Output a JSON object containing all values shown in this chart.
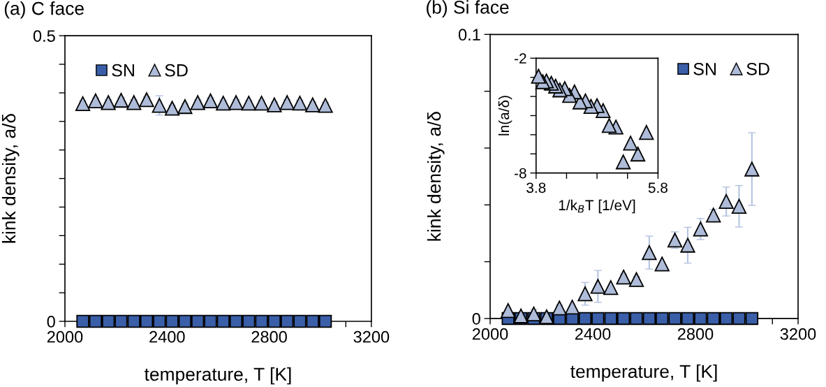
{
  "chart_data": [
    {
      "type": "scatter",
      "title": "(a) C face",
      "xlabel": "temperature, T [K]",
      "ylabel": "kink density, a/δ",
      "x": [
        2070,
        2120,
        2170,
        2220,
        2270,
        2320,
        2370,
        2420,
        2470,
        2520,
        2570,
        2620,
        2670,
        2720,
        2770,
        2820,
        2870,
        2920,
        2970,
        3020
      ],
      "series": [
        {
          "name": "SN",
          "marker": "square",
          "color": "#3a5ea8",
          "values": [
            0,
            0,
            0,
            0,
            0,
            0,
            0,
            0,
            0,
            0,
            0,
            0,
            0,
            0,
            0,
            0,
            0,
            0,
            0,
            0
          ]
        },
        {
          "name": "SD",
          "marker": "triangle",
          "color": "#aebcd9",
          "values": [
            0.381,
            0.386,
            0.383,
            0.387,
            0.383,
            0.388,
            0.378,
            0.373,
            0.376,
            0.383,
            0.386,
            0.382,
            0.383,
            0.382,
            0.382,
            0.379,
            0.383,
            0.382,
            0.379,
            0.378
          ],
          "errors": [
            0.005,
            0.005,
            0.005,
            0.005,
            0.005,
            0.005,
            0.017,
            0.005,
            0.005,
            0.005,
            0.005,
            0.005,
            0.005,
            0.005,
            0.005,
            0.005,
            0.005,
            0.005,
            0.005,
            0.005
          ]
        }
      ],
      "xlim": [
        2000,
        3200
      ],
      "xticks": [
        2000,
        {
          "value": 2100,
          "label": null
        },
        {
          "value": 2200,
          "label": null
        },
        {
          "value": 2300,
          "label": null
        },
        2400,
        {
          "value": 2500,
          "label": null
        },
        {
          "value": 2600,
          "label": null
        },
        {
          "value": 2700,
          "label": null
        },
        2800,
        {
          "value": 2900,
          "label": null
        },
        {
          "value": 3000,
          "label": null
        },
        {
          "value": 3100,
          "label": null
        },
        3200
      ],
      "ylim": [
        0,
        0.5
      ],
      "yticks": [
        0,
        {
          "value": 0.05,
          "label": null
        },
        {
          "value": 0.1,
          "label": null
        },
        {
          "value": 0.15,
          "label": null
        },
        {
          "value": 0.2,
          "label": null
        },
        {
          "value": 0.25,
          "label": null
        },
        {
          "value": 0.3,
          "label": null
        },
        {
          "value": 0.35,
          "label": null
        },
        {
          "value": 0.4,
          "label": null
        },
        {
          "value": 0.45,
          "label": null
        },
        0.5
      ],
      "legend": "top left",
      "grid": false
    },
    {
      "type": "scatter",
      "title": "(b) Si face",
      "xlabel": "temperature, T [K]",
      "ylabel": "kink density, a/δ",
      "x": [
        2070,
        2120,
        2170,
        2220,
        2270,
        2320,
        2370,
        2420,
        2470,
        2520,
        2570,
        2620,
        2670,
        2720,
        2770,
        2820,
        2870,
        2920,
        2970,
        3020
      ],
      "series": [
        {
          "name": "SN",
          "marker": "square",
          "color": "#3a5ea8",
          "values": [
            0,
            0,
            0,
            0,
            0,
            0,
            0,
            0,
            0,
            0,
            0,
            0,
            0,
            0,
            0,
            0,
            0,
            0,
            0,
            0
          ]
        },
        {
          "name": "SD",
          "marker": "triangle",
          "color": "#aebcd9",
          "values": [
            0.0028,
            0.0009,
            0.0016,
            0.0006,
            0.0037,
            0.004,
            0.0087,
            0.0113,
            0.0109,
            0.0146,
            0.0137,
            0.0232,
            0.0192,
            0.0276,
            0.0258,
            0.0315,
            0.0364,
            0.0412,
            0.0395,
            0.0526
          ],
          "errors": [
            null,
            0.001,
            0.0015,
            null,
            0.001,
            null,
            0.004,
            0.0056,
            null,
            0.001,
            0.001,
            0.0058,
            null,
            0.0029,
            0.0063,
            0.0037,
            0.002,
            0.0051,
            0.0073,
            0.0128
          ]
        }
      ],
      "xlim": [
        2000,
        3200
      ],
      "xticks": [
        2000,
        {
          "value": 2100,
          "label": null
        },
        {
          "value": 2200,
          "label": null
        },
        {
          "value": 2300,
          "label": null
        },
        2400,
        {
          "value": 2500,
          "label": null
        },
        {
          "value": 2600,
          "label": null
        },
        {
          "value": 2700,
          "label": null
        },
        2800,
        {
          "value": 2900,
          "label": null
        },
        {
          "value": 3000,
          "label": null
        },
        {
          "value": 3100,
          "label": null
        },
        3200
      ],
      "ylim": [
        0,
        0.1
      ],
      "yticks": [
        0,
        {
          "value": 0.02,
          "label": null
        },
        {
          "value": 0.04,
          "label": null
        },
        {
          "value": 0.06,
          "label": null
        },
        {
          "value": 0.08,
          "label": null
        },
        0.1
      ],
      "legend": "top right",
      "grid": false
    },
    {
      "type": "scatter",
      "xlabel": "1/k$_{B}$T [1/eV]",
      "ylabel": "ln(a/δ)",
      "x": [
        5.61,
        5.47,
        5.35,
        5.23,
        5.11,
        5.0,
        4.9,
        4.8,
        4.7,
        4.61,
        4.52,
        4.43,
        4.35,
        4.27,
        4.19,
        4.12,
        4.05,
        3.97,
        3.91,
        3.84
      ],
      "series": [
        {
          "marker": "triangle",
          "color": "#aebcd9",
          "values": [
            -5.88,
            -7.01,
            -6.44,
            -7.42,
            -5.6,
            -5.52,
            -4.74,
            -4.48,
            -4.52,
            -4.23,
            -4.29,
            -3.76,
            -3.95,
            -3.59,
            -3.66,
            -3.46,
            -3.31,
            -3.19,
            -3.23,
            -2.94
          ]
        }
      ],
      "xlim": [
        3.8,
        5.8
      ],
      "xticks": [
        3.8,
        {
          "value": 4.3,
          "label": null
        },
        {
          "value": 4.8,
          "label": null
        },
        {
          "value": 5.3,
          "label": null
        },
        5.8
      ],
      "ylim": [
        -8,
        -2
      ],
      "yticks": [
        -8,
        {
          "value": -7,
          "label": null
        },
        {
          "value": -6,
          "label": null
        },
        {
          "value": -5,
          "label": null
        },
        {
          "value": -4,
          "label": null
        },
        {
          "value": -3,
          "label": null
        },
        -2
      ],
      "grid": false
    }
  ]
}
